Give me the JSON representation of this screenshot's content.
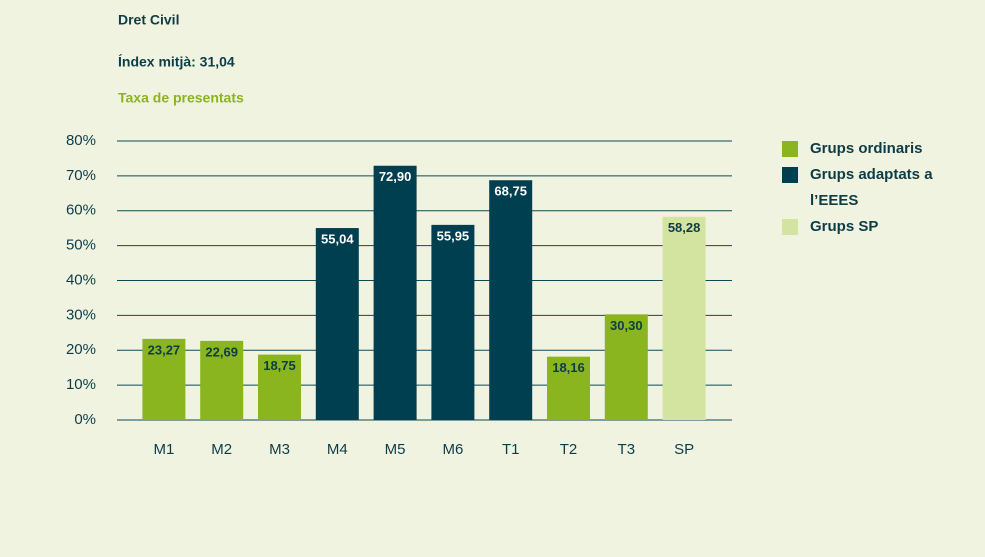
{
  "chart_data": {
    "type": "bar",
    "title": "Dret Civil",
    "subtitle": "Índex mitjà: 31,04",
    "axis_title": "Taxa de presentats",
    "categories": [
      "M1",
      "M2",
      "M3",
      "M4",
      "M5",
      "M6",
      "T1",
      "T2",
      "T3",
      "SP"
    ],
    "series": [
      {
        "name": "Grups ordinaris",
        "color": "#8ab51e",
        "values": [
          23.27,
          22.69,
          18.75,
          null,
          null,
          null,
          null,
          18.16,
          30.3,
          null
        ],
        "value_labels": [
          "23,27",
          "22,69",
          "18,75",
          null,
          null,
          null,
          null,
          "18,16",
          "30,30",
          null
        ]
      },
      {
        "name": "Grups adaptats a l’EEES",
        "color": "#003f4f",
        "values": [
          null,
          null,
          null,
          55.04,
          72.9,
          55.95,
          68.75,
          null,
          null,
          null
        ],
        "value_labels": [
          null,
          null,
          null,
          "55,04",
          "72,90",
          "55,95",
          "68,75",
          null,
          null,
          null
        ]
      },
      {
        "name": "Grups SP",
        "color": "#d3e3a0",
        "values": [
          null,
          null,
          null,
          null,
          null,
          null,
          null,
          null,
          null,
          58.28
        ],
        "value_labels": [
          null,
          null,
          null,
          null,
          null,
          null,
          null,
          null,
          null,
          "58,28"
        ]
      }
    ],
    "ylim": [
      0,
      80
    ],
    "yticks": [
      {
        "value": 0,
        "label": "0%"
      },
      {
        "value": 10,
        "label": "10%"
      },
      {
        "value": 20,
        "label": "20%"
      },
      {
        "value": 30,
        "label": "30%"
      },
      {
        "value": 40,
        "label": "40%"
      },
      {
        "value": 50,
        "label": "50%"
      },
      {
        "value": 60,
        "label": "60%"
      },
      {
        "value": 70,
        "label": "70%"
      },
      {
        "value": 80,
        "label": "80%"
      }
    ],
    "grid": true,
    "legend": "right"
  }
}
